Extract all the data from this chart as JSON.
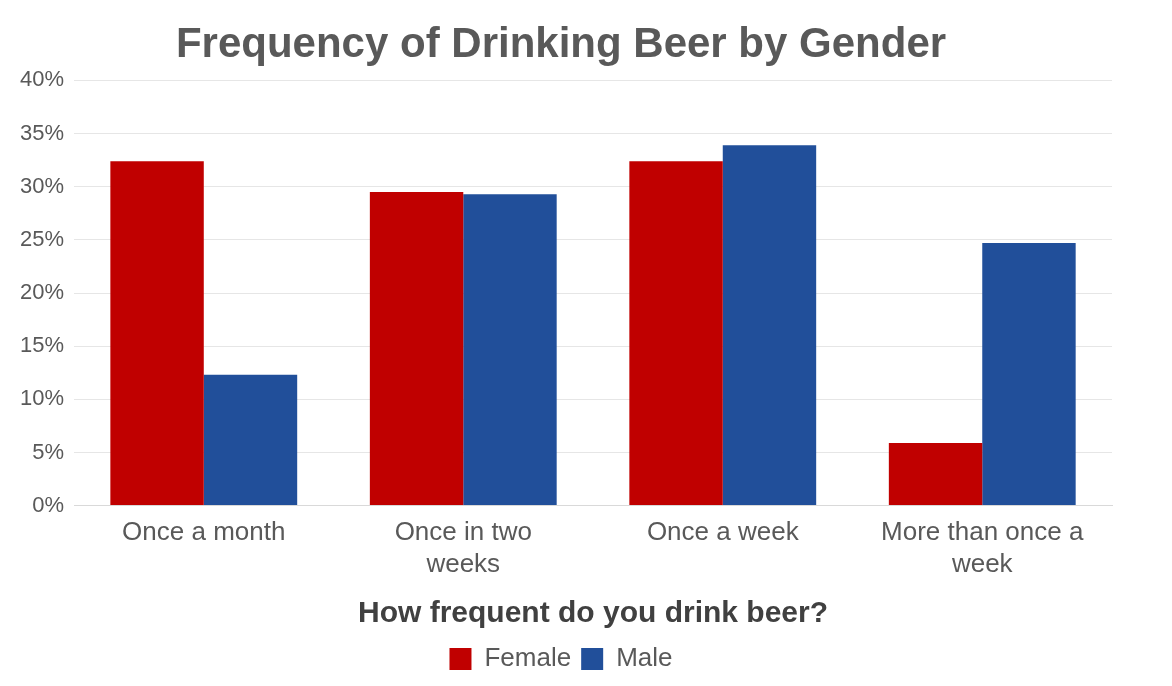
{
  "chart_data": {
    "type": "bar",
    "title": "Frequency of Drinking Beer by Gender",
    "xlabel": "How frequent do you drink beer?",
    "categories": [
      "Once a month",
      "Once in two weeks",
      "Once a week",
      "More than once a week"
    ],
    "series": [
      {
        "name": "Female",
        "color": "#c00000",
        "values": [
          32.4,
          29.5,
          32.4,
          5.9
        ]
      },
      {
        "name": "Male",
        "color": "#214f9a",
        "values": [
          12.3,
          29.3,
          33.9,
          24.7
        ]
      }
    ],
    "ylim": [
      0,
      40
    ],
    "yticks": [
      {
        "value": 0,
        "label": "0%"
      },
      {
        "value": 5,
        "label": "5%"
      },
      {
        "value": 10,
        "label": "10%"
      },
      {
        "value": 15,
        "label": "15%"
      },
      {
        "value": 20,
        "label": "20%"
      },
      {
        "value": 25,
        "label": "25%"
      },
      {
        "value": 30,
        "label": "30%"
      },
      {
        "value": 35,
        "label": "35%"
      },
      {
        "value": 40,
        "label": "40%"
      }
    ],
    "grid": "y",
    "legend": "bottom"
  }
}
